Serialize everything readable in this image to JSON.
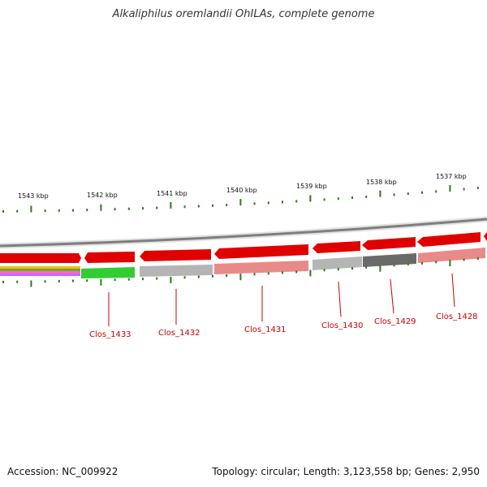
{
  "title": "Alkaliphilus oremlandii OhILAs, complete genome",
  "footer": {
    "accession": "Accession: NC_009922",
    "summary": "Topology: circular; Length: 3,123,558 bp; Genes: 2,950"
  },
  "scale_labels": [
    "1543 kbp",
    "1542 kbp",
    "1541 kbp",
    "1540 kbp",
    "1539 kbp",
    "1538 kbp",
    "1537 kbp"
  ],
  "genes": [
    "Clos_1433",
    "Clos_1432",
    "Clos_1431",
    "Clos_1430",
    "Clos_1429",
    "Clos_1428"
  ],
  "colors": {
    "backbone": "#8a8a8a",
    "cds": "#e00000",
    "tick": "#2a7a1a",
    "label": "#cc0000",
    "green_feature": "#33cc33",
    "grey_feature": "#b5b5b5",
    "dark_feature": "#6a6a6a",
    "pink_feature": "#e88a8a"
  }
}
